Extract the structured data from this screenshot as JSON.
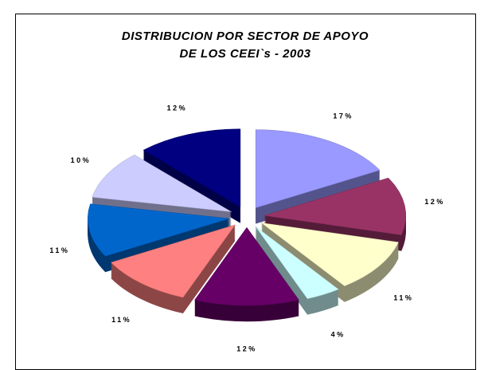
{
  "chart_data": {
    "type": "pie3d",
    "title": [
      "DISTRIBUCION POR SECTOR DE APOYO",
      "DE LOS CEEI`s - 2003"
    ],
    "values": [
      17,
      12,
      11,
      4,
      12,
      11,
      11,
      10,
      12
    ],
    "value_labels": [
      "17%",
      "12%",
      "11%",
      "4%",
      "12%",
      "11%",
      "11%",
      "10%",
      "12%"
    ],
    "colors": [
      "#9999ff",
      "#993366",
      "#ffffcc",
      "#ccffff",
      "#660066",
      "#ff8080",
      "#0066cc",
      "#ccccff",
      "#000080"
    ]
  }
}
